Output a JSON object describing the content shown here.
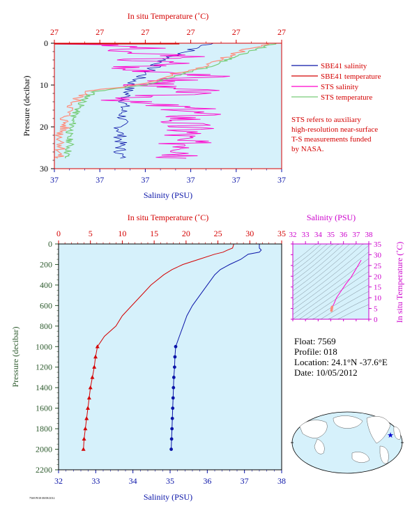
{
  "colors": {
    "plot_bg": "#d6f1fb",
    "sbe41_salinity": "#0a14a8",
    "sbe41_temperature": "#d40000",
    "sts_salinity": "#ff00cc",
    "sts_temperature": "#77cc77",
    "sts_temperature_warm": "#ff8c7a",
    "temperature_axis": "#d40000",
    "salinity_axis": "#0a14a8",
    "pressure_axis": "#2d5a2d",
    "ts_axis": "#cc00cc"
  },
  "legend": {
    "items": [
      {
        "label": "SBE41 salinity",
        "color": "#0a14a8"
      },
      {
        "label": "SBE41 temperature",
        "color": "#d40000"
      },
      {
        "label": "STS salinity",
        "color": "#ff00cc"
      },
      {
        "label": "STS temperature",
        "color": "#77cc77"
      }
    ],
    "note": [
      "STS refers to auxiliary",
      "high-resolution near-surface",
      "T-S measurements funded",
      "by NASA."
    ]
  },
  "info": {
    "float": "Float:  7569",
    "profile": "Profile:  018",
    "location": "Location:  24.1°N  -37.6°E",
    "date": "Date:  10/05/2012"
  },
  "footer_text": "7569 P018 08/08/2012",
  "chart_data": [
    {
      "type": "line",
      "panel": "near-surface",
      "top_axis_label": "In situ Temperature (˚C)",
      "bottom_axis_label": "Salinity (PSU)",
      "ylabel": "Pressure (decibar)",
      "top_ticks": [
        "27",
        "27",
        "27",
        "27",
        "27",
        "27"
      ],
      "bottom_ticks": [
        "37",
        "37",
        "37",
        "37",
        "37",
        "37"
      ],
      "yticks": [
        0,
        10,
        20,
        30
      ],
      "ylim": [
        30,
        0
      ],
      "note": "Top and bottom axes print identical rounded labels; series positions are plotted as fractions of the axis span.",
      "series": [
        {
          "name": "STS temperature",
          "x": [
            0.97,
            0.92,
            0.85,
            0.81,
            0.76,
            0.72,
            0.66,
            0.58,
            0.52,
            0.4,
            0.18,
            0.14,
            0.12,
            0.1,
            0.08,
            0.08,
            0.06,
            0.07,
            0.06,
            0.05
          ],
          "y": [
            0.0,
            1.0,
            2.0,
            3.0,
            4.0,
            5.0,
            6.0,
            7.0,
            8.0,
            10.0,
            11.5,
            13.0,
            14.5,
            16.0,
            18.0,
            20.0,
            22.0,
            24.0,
            26.0,
            27.5
          ]
        },
        {
          "name": "STS salinity",
          "x": [
            0.0,
            0.4,
            0.2,
            0.6,
            0.35,
            0.55,
            0.25,
            0.7,
            0.5,
            0.4,
            0.65,
            0.45,
            0.3,
            0.58,
            0.62,
            0.55,
            0.6,
            0.52,
            0.65,
            0.58
          ],
          "y": [
            0.0,
            1.0,
            2.0,
            3.0,
            4.0,
            5.0,
            6.0,
            7.5,
            9.0,
            10.5,
            11.5,
            12.5,
            14.0,
            15.5,
            17.0,
            19.0,
            21.0,
            23.0,
            25.0,
            27.5
          ]
        },
        {
          "name": "SBE41 salinity",
          "x": [
            0.7,
            0.58,
            0.48,
            0.43,
            0.38,
            0.33,
            0.32,
            0.31,
            0.3,
            0.3,
            0.29,
            0.29,
            0.29
          ],
          "y": [
            0.0,
            2.0,
            4.0,
            6.0,
            8.0,
            10.0,
            12.0,
            14.0,
            16.0,
            18.0,
            20.0,
            24.0,
            27.5
          ]
        }
      ]
    },
    {
      "type": "line",
      "panel": "full-profile",
      "top_axis_label": "In situ Temperature (˚C)",
      "bottom_axis_label": "Salinity (PSU)",
      "ylabel": "Pressure (decibar)",
      "temperature_ticks": [
        0,
        5,
        10,
        15,
        20,
        25,
        30,
        35
      ],
      "salinity_ticks": [
        32,
        33,
        34,
        35,
        36,
        37,
        38
      ],
      "pressure_ticks": [
        0,
        200,
        400,
        600,
        800,
        1000,
        1200,
        1400,
        1600,
        1800,
        2000,
        2200
      ],
      "temperature_range": [
        0,
        35
      ],
      "salinity_range": [
        32,
        38
      ],
      "ylim": [
        2200,
        0
      ],
      "series": [
        {
          "name": "SBE41 temperature",
          "pressure": [
            0,
            40,
            60,
            80,
            100,
            150,
            200,
            250,
            300,
            400,
            500,
            600,
            700,
            800,
            900,
            1000,
            1100,
            1200,
            1300,
            1400,
            1500,
            1600,
            1700,
            1800,
            1900,
            2000
          ],
          "temperature": [
            27.5,
            27.3,
            26.5,
            25.8,
            24.5,
            22.0,
            19.5,
            17.8,
            16.5,
            14.5,
            13.0,
            11.5,
            10.0,
            9.0,
            7.2,
            6.1,
            5.8,
            5.6,
            5.3,
            5.0,
            4.8,
            4.6,
            4.4,
            4.2,
            4.0,
            3.9
          ]
        },
        {
          "name": "SBE41 salinity",
          "pressure": [
            0,
            40,
            60,
            80,
            100,
            150,
            200,
            250,
            300,
            400,
            500,
            600,
            700,
            800,
            900,
            1000,
            1100,
            1200,
            1300,
            1400,
            1500,
            1600,
            1700,
            1800,
            1900,
            2000
          ],
          "salinity": [
            37.4,
            37.4,
            37.45,
            37.4,
            37.1,
            36.9,
            36.6,
            36.35,
            36.2,
            36.0,
            35.8,
            35.6,
            35.45,
            35.35,
            35.25,
            35.15,
            35.13,
            35.12,
            35.1,
            35.09,
            35.08,
            35.07,
            35.06,
            35.05,
            35.04,
            35.03
          ]
        }
      ]
    },
    {
      "type": "scatter",
      "panel": "T-S diagram",
      "top_axis_label": "Salinity (PSU)",
      "ylabel": "In situ Temperature (˚C)",
      "salinity_ticks": [
        32,
        33,
        34,
        35,
        36,
        37,
        38
      ],
      "temperature_ticks": [
        0,
        5,
        10,
        15,
        20,
        25,
        30,
        35
      ],
      "salinity_range": [
        32,
        38
      ],
      "temperature_range": [
        0,
        35
      ],
      "series": [
        {
          "name": "SBE41",
          "salinity": [
            37.4,
            37.1,
            36.6,
            36.2,
            35.8,
            35.45,
            35.25,
            35.15,
            35.1,
            35.07,
            35.04
          ],
          "temperature": [
            27.5,
            24.5,
            19.5,
            16.5,
            13.0,
            10.0,
            7.2,
            6.1,
            5.3,
            4.6,
            4.0
          ]
        }
      ]
    }
  ]
}
